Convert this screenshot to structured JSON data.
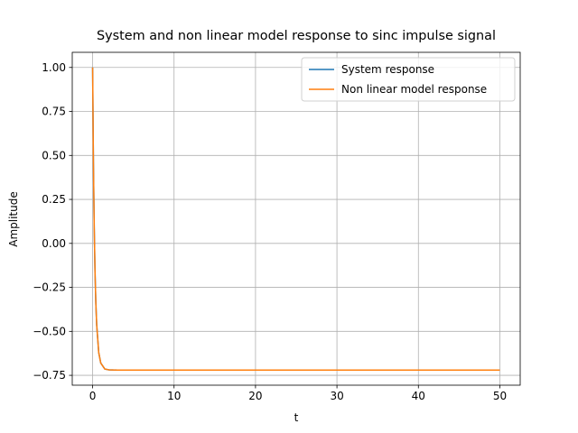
{
  "chart_data": {
    "type": "line",
    "title": "System and non linear model response to sinc impulse signal",
    "xlabel": "t",
    "ylabel": "Amplitude",
    "x": [
      0,
      0.1,
      0.2,
      0.3,
      0.4,
      0.5,
      0.75,
      1,
      1.5,
      2,
      3,
      5,
      10,
      20,
      30,
      40,
      50
    ],
    "series": [
      {
        "name": "System response",
        "color": "#1f77b4",
        "values": [
          1.0,
          0.456,
          0.085,
          -0.17,
          -0.344,
          -0.462,
          -0.62,
          -0.68,
          -0.714,
          -0.719,
          -0.72,
          -0.72,
          -0.72,
          -0.72,
          -0.72,
          -0.72,
          -0.72
        ]
      },
      {
        "name": "Non linear model response",
        "color": "#ff7f0e",
        "values": [
          1.0,
          0.456,
          0.085,
          -0.17,
          -0.344,
          -0.462,
          -0.62,
          -0.68,
          -0.714,
          -0.719,
          -0.72,
          -0.72,
          -0.72,
          -0.72,
          -0.72,
          -0.72,
          -0.72
        ]
      }
    ],
    "xlim": [
      -2.5,
      52.5
    ],
    "ylim": [
      -0.806,
      1.086
    ],
    "xticks": [
      0,
      10,
      20,
      30,
      40,
      50
    ],
    "yticks": [
      {
        "value": -0.75,
        "label": "−0.75"
      },
      {
        "value": -0.5,
        "label": "−0.50"
      },
      {
        "value": -0.25,
        "label": "−0.25"
      },
      {
        "value": 0,
        "label": "0.00"
      },
      {
        "value": 0.25,
        "label": "0.25"
      },
      {
        "value": 0.5,
        "label": "0.50"
      },
      {
        "value": 0.75,
        "label": "0.75"
      },
      {
        "value": 1.0,
        "label": "1.00"
      }
    ],
    "grid": true,
    "legend": "upper right"
  }
}
